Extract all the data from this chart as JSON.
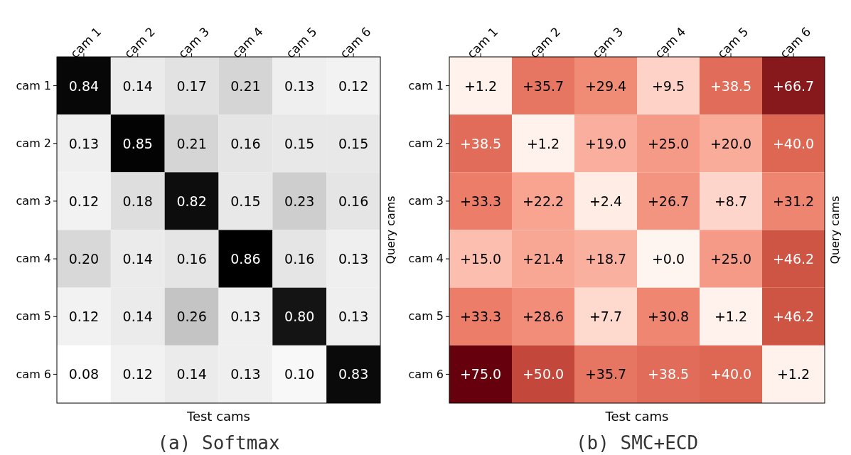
{
  "chart_data": [
    {
      "type": "heatmap",
      "title": "(a) Softmax",
      "xlabel": "Test cams",
      "ylabel": "Query cams",
      "colors": [
        "#ffffff",
        "#000000"
      ],
      "categories": [
        "cam 1",
        "cam 2",
        "cam 3",
        "cam 4",
        "cam 5",
        "cam 6"
      ],
      "y_categories": [
        "cam 1",
        "cam 2",
        "cam 3",
        "cam 4",
        "cam 5",
        "cam 6"
      ],
      "cells": [
        [
          0.84,
          0.14,
          0.17,
          0.21,
          0.13,
          0.12
        ],
        [
          0.13,
          0.85,
          0.21,
          0.16,
          0.15,
          0.15
        ],
        [
          0.12,
          0.18,
          0.82,
          0.15,
          0.23,
          0.16
        ],
        [
          0.2,
          0.14,
          0.16,
          0.86,
          0.16,
          0.13
        ],
        [
          0.12,
          0.14,
          0.26,
          0.13,
          0.8,
          0.13
        ],
        [
          0.08,
          0.12,
          0.14,
          0.13,
          0.1,
          0.83
        ]
      ],
      "cell_labels": [
        [
          "0.84",
          "0.14",
          "0.17",
          "0.21",
          "0.13",
          "0.12"
        ],
        [
          "0.13",
          "0.85",
          "0.21",
          "0.16",
          "0.15",
          "0.15"
        ],
        [
          "0.12",
          "0.18",
          "0.82",
          "0.15",
          "0.23",
          "0.16"
        ],
        [
          "0.20",
          "0.14",
          "0.16",
          "0.86",
          "0.16",
          "0.13"
        ],
        [
          "0.12",
          "0.14",
          "0.26",
          "0.13",
          "0.80",
          "0.13"
        ],
        [
          "0.08",
          "0.12",
          "0.14",
          "0.13",
          "0.10",
          "0.83"
        ]
      ]
    },
    {
      "type": "heatmap",
      "title": "(b) SMC+ECD",
      "xlabel": "Test cams",
      "ylabel": "Query cams",
      "colors": [
        "#fff5f0",
        "#fb6a4a",
        "#67000d"
      ],
      "categories": [
        "cam 1",
        "cam 2",
        "cam 3",
        "cam 4",
        "cam 5",
        "cam 6"
      ],
      "y_categories": [
        "cam 1",
        "cam 2",
        "cam 3",
        "cam 4",
        "cam 5",
        "cam 6"
      ],
      "cells": [
        [
          1.2,
          35.7,
          29.4,
          9.5,
          38.5,
          66.7
        ],
        [
          38.5,
          1.2,
          19.0,
          25.0,
          20.0,
          40.0
        ],
        [
          33.3,
          22.2,
          2.4,
          26.7,
          8.7,
          31.2
        ],
        [
          15.0,
          21.4,
          18.7,
          0.0,
          25.0,
          46.2
        ],
        [
          33.3,
          28.6,
          7.7,
          30.8,
          1.2,
          46.2
        ],
        [
          75.0,
          50.0,
          35.7,
          38.5,
          40.0,
          1.2
        ]
      ],
      "cell_labels": [
        [
          "+1.2",
          "+35.7",
          "+29.4",
          "+9.5",
          "+38.5",
          "+66.7"
        ],
        [
          "+38.5",
          "+1.2",
          "+19.0",
          "+25.0",
          "+20.0",
          "+40.0"
        ],
        [
          "+33.3",
          "+22.2",
          "+2.4",
          "+26.7",
          "+8.7",
          "+31.2"
        ],
        [
          "+15.0",
          "+21.4",
          "+18.7",
          "+0.0",
          "+25.0",
          "+46.2"
        ],
        [
          "+33.3",
          "+28.6",
          "+7.7",
          "+30.8",
          "+1.2",
          "+46.2"
        ],
        [
          "+75.0",
          "+50.0",
          "+35.7",
          "+38.5",
          "+40.0",
          "+1.2"
        ]
      ]
    }
  ]
}
